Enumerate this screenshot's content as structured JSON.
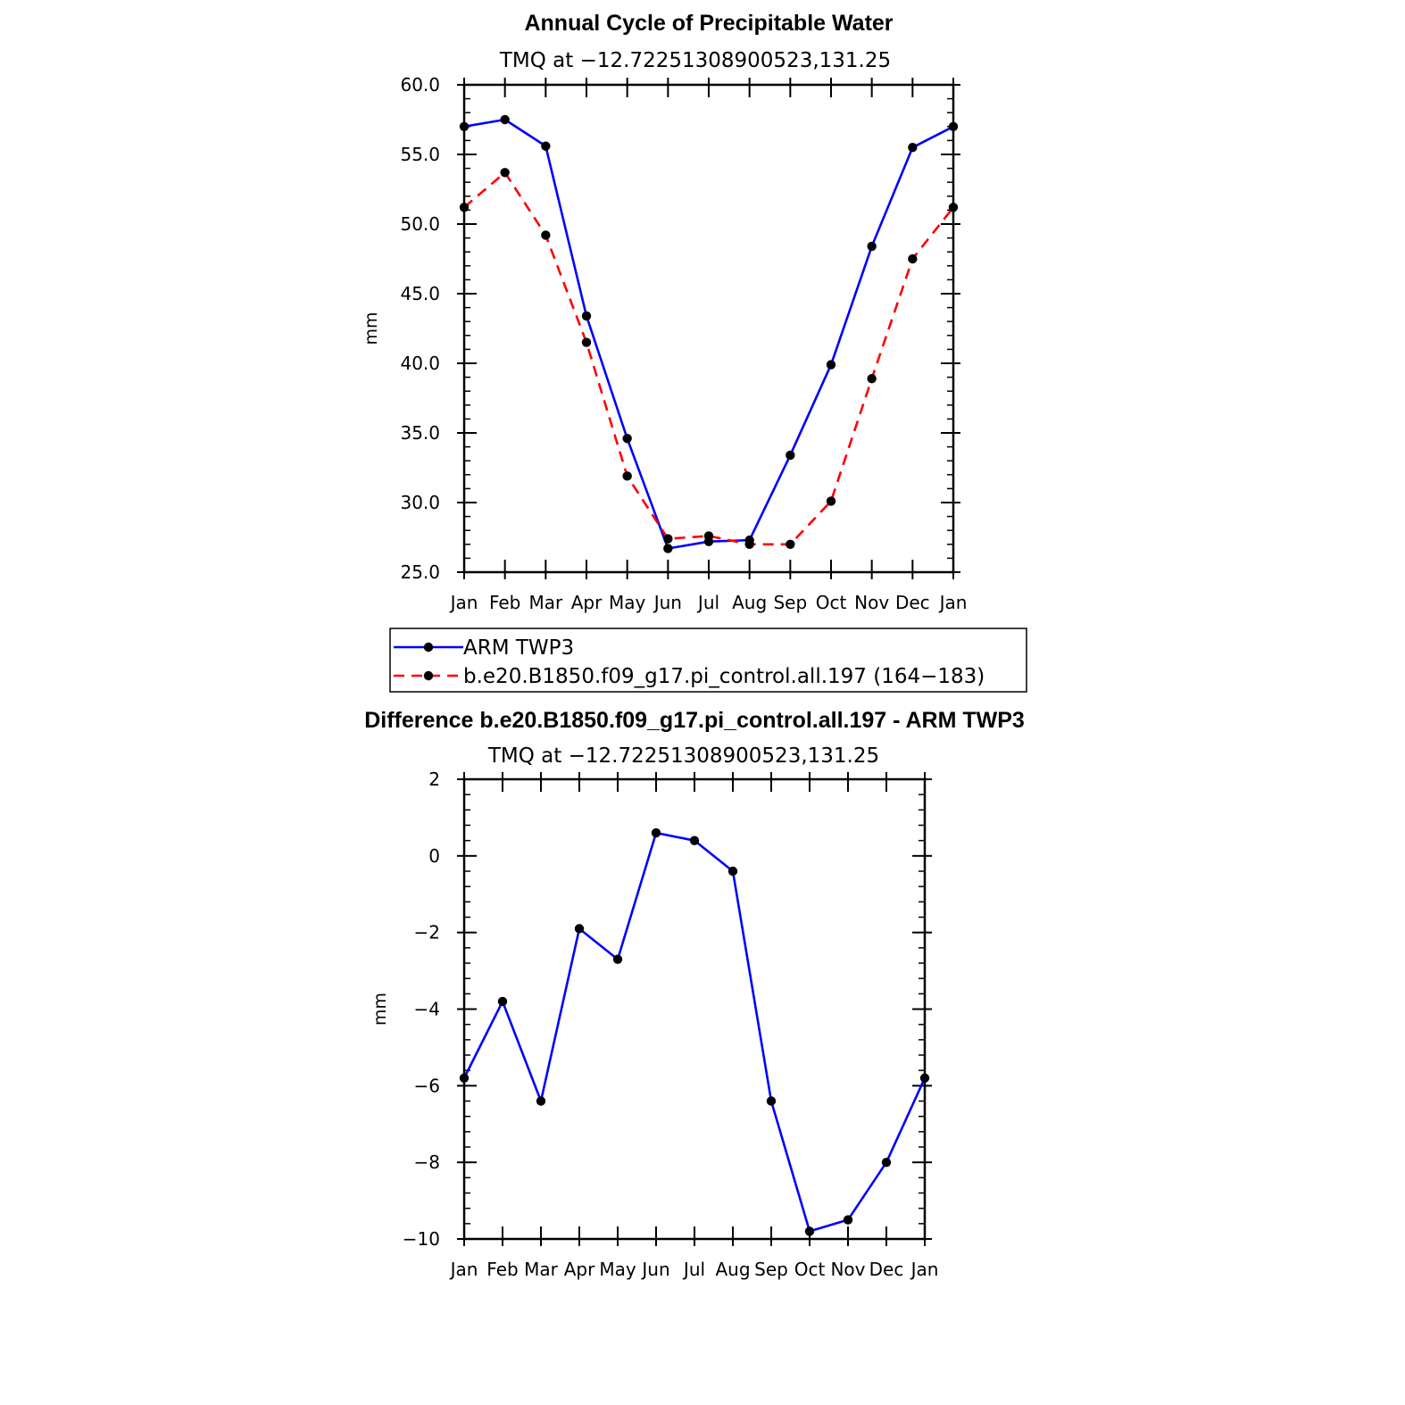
{
  "chart_data": [
    {
      "type": "line",
      "title": "Annual Cycle of Precipitable Water",
      "subtitle": "TMQ at −12.72251308900523,131.25",
      "ylabel": "mm",
      "xlabel": "",
      "ylim": [
        25,
        60
      ],
      "yticks": [
        "25.0",
        "30.0",
        "35.0",
        "40.0",
        "45.0",
        "50.0",
        "55.0",
        "60.0"
      ],
      "categories": [
        "Jan",
        "Feb",
        "Mar",
        "Apr",
        "May",
        "Jun",
        "Jul",
        "Aug",
        "Sep",
        "Oct",
        "Nov",
        "Dec",
        "Jan"
      ],
      "series": [
        {
          "name": "ARM TWP3",
          "color": "#0000ff",
          "style": "solid",
          "values": [
            57.0,
            57.5,
            55.6,
            43.4,
            34.6,
            26.7,
            27.2,
            27.3,
            33.4,
            39.9,
            48.4,
            55.5,
            57.0
          ]
        },
        {
          "name": "b.e20.B1850.f09_g17.pi_control.all.197 (164−183)",
          "color": "#ff0000",
          "style": "dashed",
          "values": [
            51.2,
            53.7,
            49.2,
            41.5,
            31.9,
            27.4,
            27.6,
            27.0,
            27.0,
            30.1,
            38.9,
            47.5,
            51.2
          ]
        }
      ],
      "legend_position": "bottom"
    },
    {
      "type": "line",
      "title": "Difference b.e20.B1850.f09_g17.pi_control.all.197 - ARM TWP3",
      "subtitle": "TMQ at −12.72251308900523,131.25",
      "ylabel": "mm",
      "xlabel": "",
      "ylim": [
        -10,
        2
      ],
      "yticks": [
        "−10",
        "−8",
        "−6",
        "−4",
        "−2",
        "0",
        "2"
      ],
      "categories": [
        "Jan",
        "Feb",
        "Mar",
        "Apr",
        "May",
        "Jun",
        "Jul",
        "Aug",
        "Sep",
        "Oct",
        "Nov",
        "Dec",
        "Jan"
      ],
      "series": [
        {
          "name": "Difference",
          "color": "#0000ff",
          "style": "solid",
          "values": [
            -5.8,
            -3.8,
            -6.4,
            -1.9,
            -2.7,
            0.6,
            0.4,
            -0.4,
            -6.4,
            -9.8,
            -9.5,
            -8.0,
            -5.8
          ]
        }
      ]
    }
  ]
}
